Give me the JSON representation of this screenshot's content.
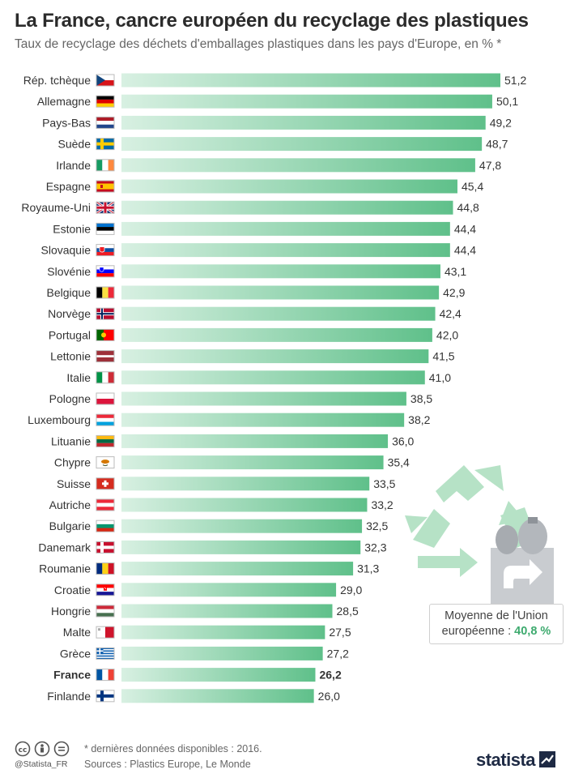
{
  "title": "La France, cancre européen du recyclage des plastiques",
  "subtitle": "Taux de recyclage des déchets d'emballages plastiques dans les pays d'Europe, en % *",
  "chart_data": {
    "type": "bar",
    "orientation": "horizontal",
    "unit": "%",
    "highlight": "France",
    "categories": [
      "Rép. tchèque",
      "Allemagne",
      "Pays-Bas",
      "Suède",
      "Irlande",
      "Espagne",
      "Royaume-Uni",
      "Estonie",
      "Slovaquie",
      "Slovénie",
      "Belgique",
      "Norvège",
      "Portugal",
      "Lettonie",
      "Italie",
      "Pologne",
      "Luxembourg",
      "Lituanie",
      "Chypre",
      "Suisse",
      "Autriche",
      "Bulgarie",
      "Danemark",
      "Roumanie",
      "Croatie",
      "Hongrie",
      "Malte",
      "Grèce",
      "France",
      "Finlande"
    ],
    "values": [
      51.2,
      50.1,
      49.2,
      48.7,
      47.8,
      45.4,
      44.8,
      44.4,
      44.4,
      43.1,
      42.9,
      42.4,
      42.0,
      41.5,
      41.0,
      38.5,
      38.2,
      36.0,
      35.4,
      33.5,
      33.2,
      32.5,
      32.3,
      31.3,
      29.0,
      28.5,
      27.5,
      27.2,
      26.2,
      26.0
    ],
    "labels": [
      "51,2",
      "50,1",
      "49,2",
      "48,7",
      "47,8",
      "45,4",
      "44,8",
      "44,4",
      "44,4",
      "43,1",
      "42,9",
      "42,4",
      "42,0",
      "41,5",
      "41,0",
      "38,5",
      "38,2",
      "36,0",
      "35,4",
      "33,5",
      "33,2",
      "32,5",
      "32,3",
      "31,3",
      "29,0",
      "28,5",
      "27,5",
      "27,2",
      "26,2",
      "26,0"
    ],
    "flags": [
      "cz",
      "de",
      "nl",
      "se",
      "ie",
      "es",
      "uk",
      "ee",
      "sk",
      "si",
      "be",
      "no",
      "pt",
      "lv",
      "it",
      "pl",
      "lu",
      "lt",
      "cy",
      "ch",
      "at",
      "bg",
      "dk",
      "ro",
      "hr",
      "hu",
      "mt",
      "gr",
      "fr",
      "fi"
    ],
    "xlim": [
      0,
      51.2
    ]
  },
  "average": {
    "line1": "Moyenne de l'Union",
    "line2": "européenne :",
    "value": "40,8 %"
  },
  "footer": {
    "handle": "@Statista_FR",
    "footnote": "* dernières données disponibles : 2016.",
    "sources": "Sources : Plastics Europe, Le Monde",
    "brand": "statista"
  },
  "colors": {
    "bar_start": "#d8f0e2",
    "bar_end": "#5fc08a",
    "accent": "#3daa6e",
    "recycle": "#b6e2c6"
  }
}
